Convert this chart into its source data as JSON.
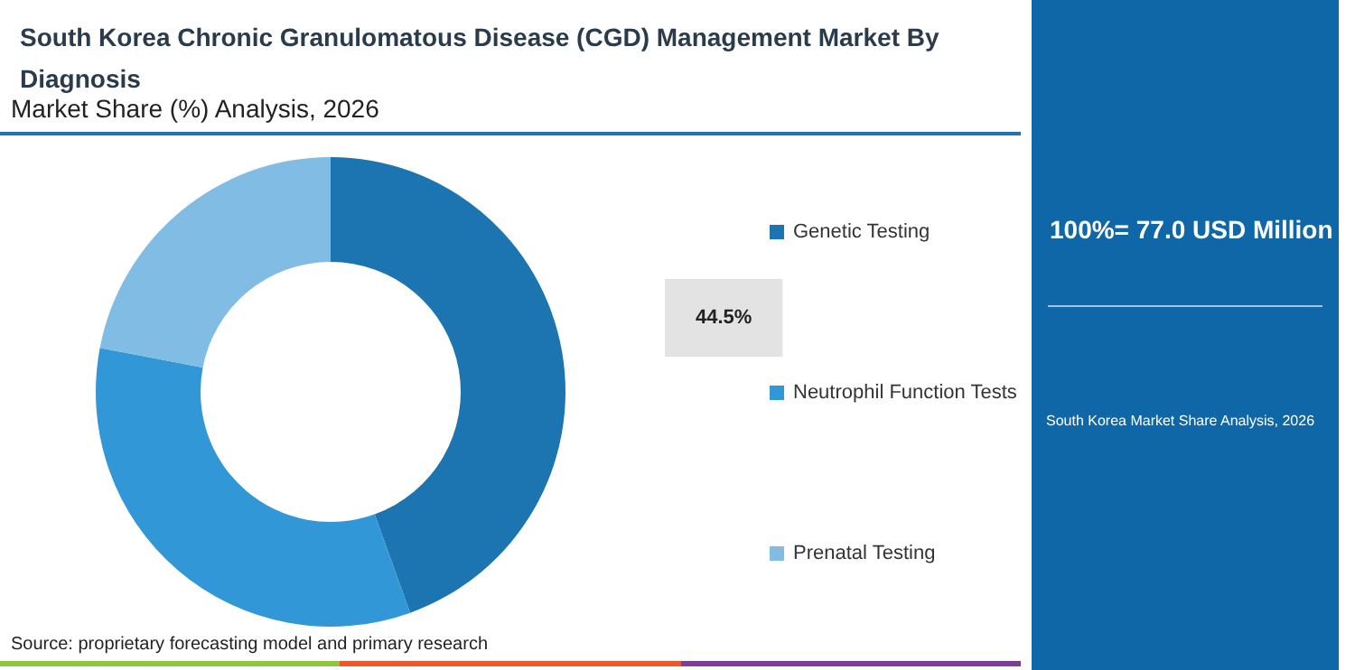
{
  "chart_data": {
    "type": "donut",
    "title": "South Korea Chronic Granulomatous Disease (CGD) Management Market By Diagnosis",
    "subtitle": "Market Share (%) Analysis, 2026",
    "categories": [
      "Genetic Testing",
      "Neutrophil Function Tests",
      "Prenatal Testing"
    ],
    "values": [
      44.5,
      33.5,
      22
    ],
    "colors": [
      "#1c75b1",
      "#3197d6",
      "#80bce3"
    ],
    "value_labels": [
      "44.5%",
      null,
      null
    ],
    "legend": "right",
    "annotations": [
      "100%= 77.0 USD Million",
      "South Korea Market Share Analysis, 2026",
      "Source: proprietary forecasting model and primary research"
    ]
  }
}
